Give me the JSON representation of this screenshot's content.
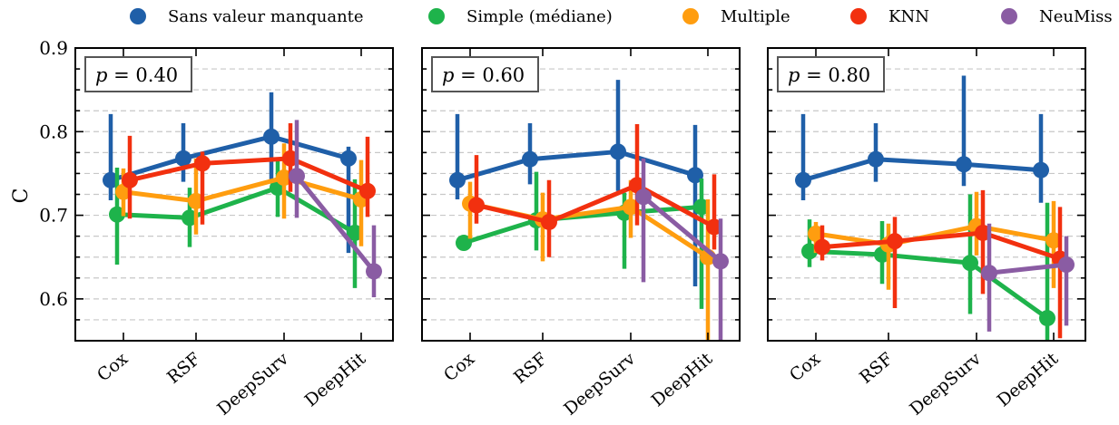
{
  "chart_data": {
    "type": "line",
    "ylabel": "C",
    "ylim": [
      0.55,
      0.9
    ],
    "yticks": [
      "0.6",
      "0.7",
      "0.8",
      "0.9"
    ],
    "ygrid_minor": true,
    "legend_position": "top",
    "categories": [
      "Cox",
      "RSF",
      "DeepSurv",
      "DeepHit"
    ],
    "series_meta": [
      {
        "name": "Sans valeur manquante",
        "color": "#1f5fa8"
      },
      {
        "name": "Simple (médiane)",
        "color": "#1eb34b"
      },
      {
        "name": "Multiple",
        "color": "#ff9d0f"
      },
      {
        "name": "KNN",
        "color": "#f2300f"
      },
      {
        "name": "NeuMiss",
        "color": "#8a5ca3"
      }
    ],
    "panels": [
      {
        "label_prefix": "p",
        "label_value": "0.40",
        "series": [
          {
            "name": "Sans valeur manquante",
            "values": [
              0.742,
              0.768,
              0.794,
              0.768
            ],
            "err_low": [
              0.718,
              0.74,
              0.743,
              0.655
            ],
            "err_high": [
              0.821,
              0.81,
              0.847,
              0.782
            ]
          },
          {
            "name": "Simple (médiane)",
            "values": [
              0.701,
              0.697,
              0.733,
              0.679
            ],
            "err_low": [
              0.641,
              0.662,
              0.698,
              0.613
            ],
            "err_high": [
              0.757,
              0.733,
              0.766,
              0.743
            ]
          },
          {
            "name": "Multiple",
            "values": [
              0.728,
              0.717,
              0.745,
              0.719
            ],
            "err_low": [
              0.699,
              0.677,
              0.696,
              0.663
            ],
            "err_high": [
              0.756,
              0.768,
              0.786,
              0.766
            ]
          },
          {
            "name": "KNN",
            "values": [
              0.742,
              0.762,
              0.768,
              0.729
            ],
            "err_low": [
              0.696,
              0.689,
              0.728,
              0.698
            ],
            "err_high": [
              0.795,
              0.776,
              0.81,
              0.794
            ]
          },
          {
            "name": "NeuMiss",
            "values": [
              null,
              null,
              0.747,
              0.633
            ],
            "err_low": [
              null,
              null,
              0.697,
              0.602
            ],
            "err_high": [
              null,
              null,
              0.814,
              0.688
            ]
          }
        ]
      },
      {
        "label_prefix": "p",
        "label_value": "0.60",
        "series": [
          {
            "name": "Sans valeur manquante",
            "values": [
              0.742,
              0.767,
              0.776,
              0.748
            ],
            "err_low": [
              0.719,
              0.737,
              0.729,
              0.615
            ],
            "err_high": [
              0.821,
              0.81,
              0.862,
              0.808
            ]
          },
          {
            "name": "Simple (médiane)",
            "values": [
              0.667,
              0.694,
              0.703,
              0.71
            ],
            "err_low": [
              0.663,
              0.658,
              0.636,
              0.588
            ],
            "err_high": [
              0.676,
              0.752,
              0.727,
              0.744
            ]
          },
          {
            "name": "Multiple",
            "values": [
              0.714,
              0.695,
              0.71,
              0.65
            ],
            "err_low": [
              0.672,
              0.645,
              0.673,
              0.548
            ],
            "err_high": [
              0.74,
              0.727,
              0.742,
              0.719
            ]
          },
          {
            "name": "KNN",
            "values": [
              0.712,
              0.692,
              0.736,
              0.686
            ],
            "err_low": [
              0.69,
              0.65,
              0.688,
              0.659
            ],
            "err_high": [
              0.772,
              0.742,
              0.809,
              0.749
            ]
          },
          {
            "name": "NeuMiss",
            "values": [
              null,
              null,
              0.722,
              0.645
            ],
            "err_low": [
              null,
              null,
              0.62,
              0.548
            ],
            "err_high": [
              null,
              null,
              0.768,
              0.696
            ]
          }
        ]
      },
      {
        "label_prefix": "p",
        "label_value": "0.80",
        "series": [
          {
            "name": "Sans valeur manquante",
            "values": [
              0.742,
              0.767,
              0.761,
              0.754
            ],
            "err_low": [
              0.718,
              0.74,
              0.735,
              0.715
            ],
            "err_high": [
              0.821,
              0.81,
              0.867,
              0.821
            ]
          },
          {
            "name": "Simple (médiane)",
            "values": [
              0.657,
              0.653,
              0.643,
              0.577
            ],
            "err_low": [
              0.638,
              0.618,
              0.582,
              0.548
            ],
            "err_high": [
              0.695,
              0.693,
              0.725,
              0.715
            ]
          },
          {
            "name": "Multiple",
            "values": [
              0.678,
              0.665,
              0.687,
              0.67
            ],
            "err_low": [
              0.655,
              0.611,
              0.652,
              0.613
            ],
            "err_high": [
              0.692,
              0.69,
              0.728,
              0.717
            ]
          },
          {
            "name": "KNN",
            "values": [
              0.662,
              0.669,
              0.679,
              0.648
            ],
            "err_low": [
              0.646,
              0.589,
              0.606,
              0.553
            ],
            "err_high": [
              0.688,
              0.698,
              0.73,
              0.71
            ]
          },
          {
            "name": "NeuMiss",
            "values": [
              null,
              null,
              0.631,
              0.641
            ],
            "err_low": [
              null,
              null,
              0.561,
              0.568
            ],
            "err_high": [
              null,
              null,
              0.69,
              0.675
            ]
          }
        ]
      }
    ]
  }
}
